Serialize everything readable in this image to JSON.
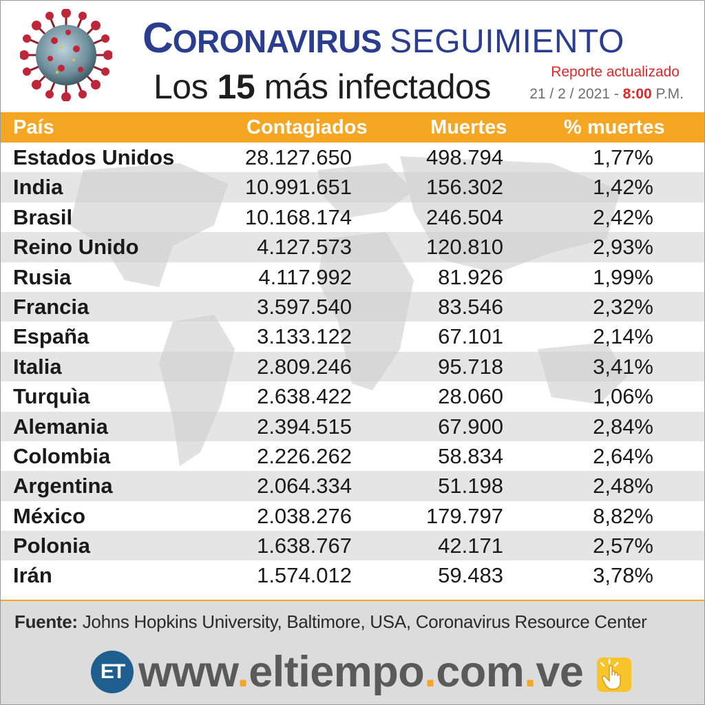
{
  "header": {
    "title_first_letter": "C",
    "title_rest": "ORONAVIRUS",
    "title_second": "SEGUIMIENTO",
    "subtitle_prefix": "Los",
    "subtitle_number": "15",
    "subtitle_suffix": "más infectados",
    "report_label": "Reporte actualizado",
    "date": "21 / 2 / 2021 -",
    "time": "8:00",
    "time_suffix": "P.M."
  },
  "table": {
    "columns": [
      "País",
      "Contagiados",
      "Muertes",
      "% muertes"
    ],
    "rows": [
      {
        "country": "Estados Unidos",
        "cases": "28.127.650",
        "deaths": "498.794",
        "pct": "1,77%"
      },
      {
        "country": "India",
        "cases": "10.991.651",
        "deaths": "156.302",
        "pct": "1,42%"
      },
      {
        "country": "Brasil",
        "cases": "10.168.174",
        "deaths": "246.504",
        "pct": "2,42%"
      },
      {
        "country": "Reino Unido",
        "cases": "4.127.573",
        "deaths": "120.810",
        "pct": "2,93%"
      },
      {
        "country": "Rusia",
        "cases": "4.117.992",
        "deaths": "81.926",
        "pct": "1,99%"
      },
      {
        "country": "Francia",
        "cases": "3.597.540",
        "deaths": "83.546",
        "pct": "2,32%"
      },
      {
        "country": "España",
        "cases": "3.133.122",
        "deaths": "67.101",
        "pct": "2,14%"
      },
      {
        "country": "Italia",
        "cases": "2.809.246",
        "deaths": "95.718",
        "pct": "3,41%"
      },
      {
        "country": "Turquìa",
        "cases": "2.638.422",
        "deaths": "28.060",
        "pct": "1,06%"
      },
      {
        "country": "Alemania",
        "cases": "2.394.515",
        "deaths": "67.900",
        "pct": "2,84%"
      },
      {
        "country": "Colombia",
        "cases": "2.226.262",
        "deaths": "58.834",
        "pct": "2,64%"
      },
      {
        "country": "Argentina",
        "cases": "2.064.334",
        "deaths": "51.198",
        "pct": "2,48%"
      },
      {
        "country": "México",
        "cases": "2.038.276",
        "deaths": "179.797",
        "pct": "8,82%"
      },
      {
        "country": "Polonia",
        "cases": "1.638.767",
        "deaths": "42.171",
        "pct": "2,57%"
      },
      {
        "country": "Irán",
        "cases": "1.574.012",
        "deaths": "59.483",
        "pct": "3,78%"
      }
    ]
  },
  "footer": {
    "source_label": "Fuente:",
    "source_text": "Johns Hopkins University, Baltimore, USA, Coronavirus Resource Center",
    "logo_text": "ET",
    "url_parts": [
      "www",
      ".",
      "eltiempo",
      ".",
      "com",
      ".",
      "ve"
    ]
  },
  "icons": {
    "virus": "coronavirus-illustration",
    "click": "pointing-hand-click-icon",
    "map": "world-map-watermark"
  },
  "colors": {
    "title_blue": "#2b3d8f",
    "header_orange": "#f5a623",
    "accent_red": "#e02727",
    "logo_blue": "#1f5f8f",
    "click_yellow": "#f7c52b"
  }
}
